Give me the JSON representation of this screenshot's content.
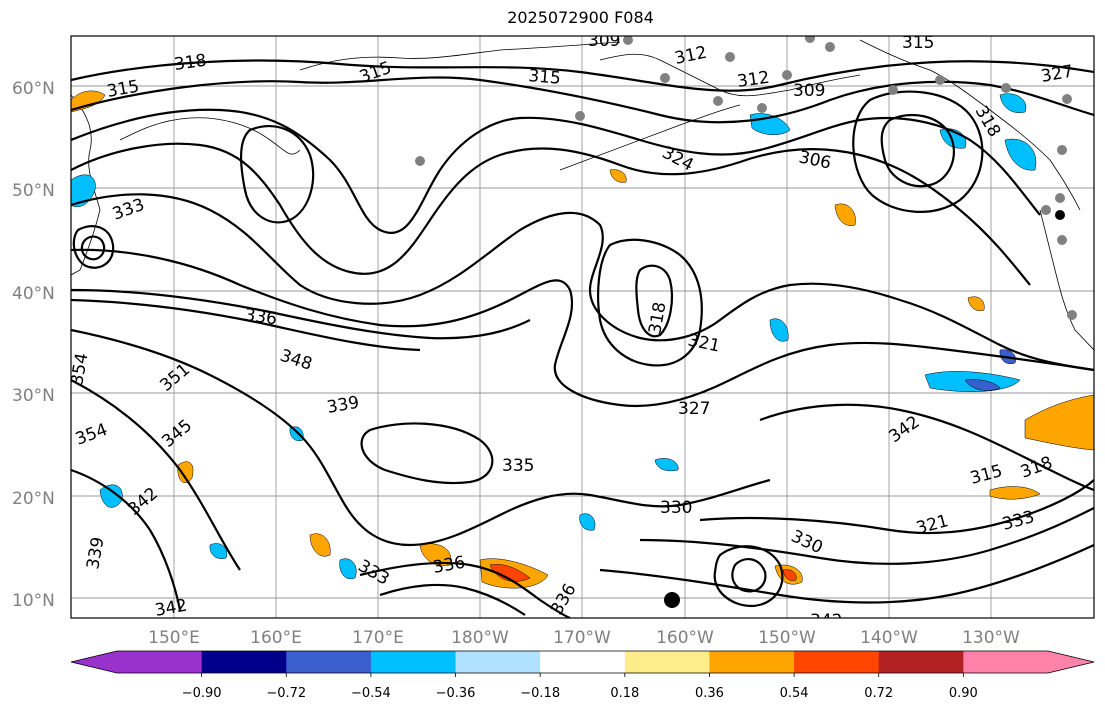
{
  "title": "2025072900 F084",
  "lat_ticks": [
    "60°N",
    "50°N",
    "40°N",
    "30°N",
    "20°N",
    "10°N"
  ],
  "lon_ticks": [
    "150°E",
    "160°E",
    "170°E",
    "180°W",
    "170°W",
    "160°W",
    "150°W",
    "140°W",
    "130°W"
  ],
  "colorbar": {
    "tick_labels": [
      "−0.90",
      "−0.72",
      "−0.54",
      "−0.36",
      "−0.18",
      "0.18",
      "0.36",
      "0.54",
      "0.72",
      "0.90"
    ],
    "colors": [
      "#9932CC",
      "#00008B",
      "#3A5FCD",
      "#00BFFF",
      "#B0E2FF",
      "#FFFFFF",
      "#FFEC8B",
      "#FFA500",
      "#FF4500",
      "#B22222",
      "#FF82AB"
    ]
  },
  "contour_labels": [
    {
      "text": "309"
    },
    {
      "text": "312"
    },
    {
      "text": "315"
    },
    {
      "text": "315"
    },
    {
      "text": "327"
    },
    {
      "text": "318"
    },
    {
      "text": "315"
    },
    {
      "text": "315"
    },
    {
      "text": "312"
    },
    {
      "text": "309"
    },
    {
      "text": "318"
    },
    {
      "text": "324"
    },
    {
      "text": "306"
    },
    {
      "text": "333"
    },
    {
      "text": "336"
    },
    {
      "text": "318"
    },
    {
      "text": "321"
    },
    {
      "text": "348"
    },
    {
      "text": "351"
    },
    {
      "text": "339"
    },
    {
      "text": "327"
    },
    {
      "text": "354"
    },
    {
      "text": "354"
    },
    {
      "text": "345"
    },
    {
      "text": "342"
    },
    {
      "text": "335"
    },
    {
      "text": "330"
    },
    {
      "text": "342"
    },
    {
      "text": "315"
    },
    {
      "text": "318"
    },
    {
      "text": "321"
    },
    {
      "text": "333"
    },
    {
      "text": "330"
    },
    {
      "text": "339"
    },
    {
      "text": "333"
    },
    {
      "text": "336"
    },
    {
      "text": "342"
    },
    {
      "text": "342"
    },
    {
      "text": "336"
    }
  ]
}
